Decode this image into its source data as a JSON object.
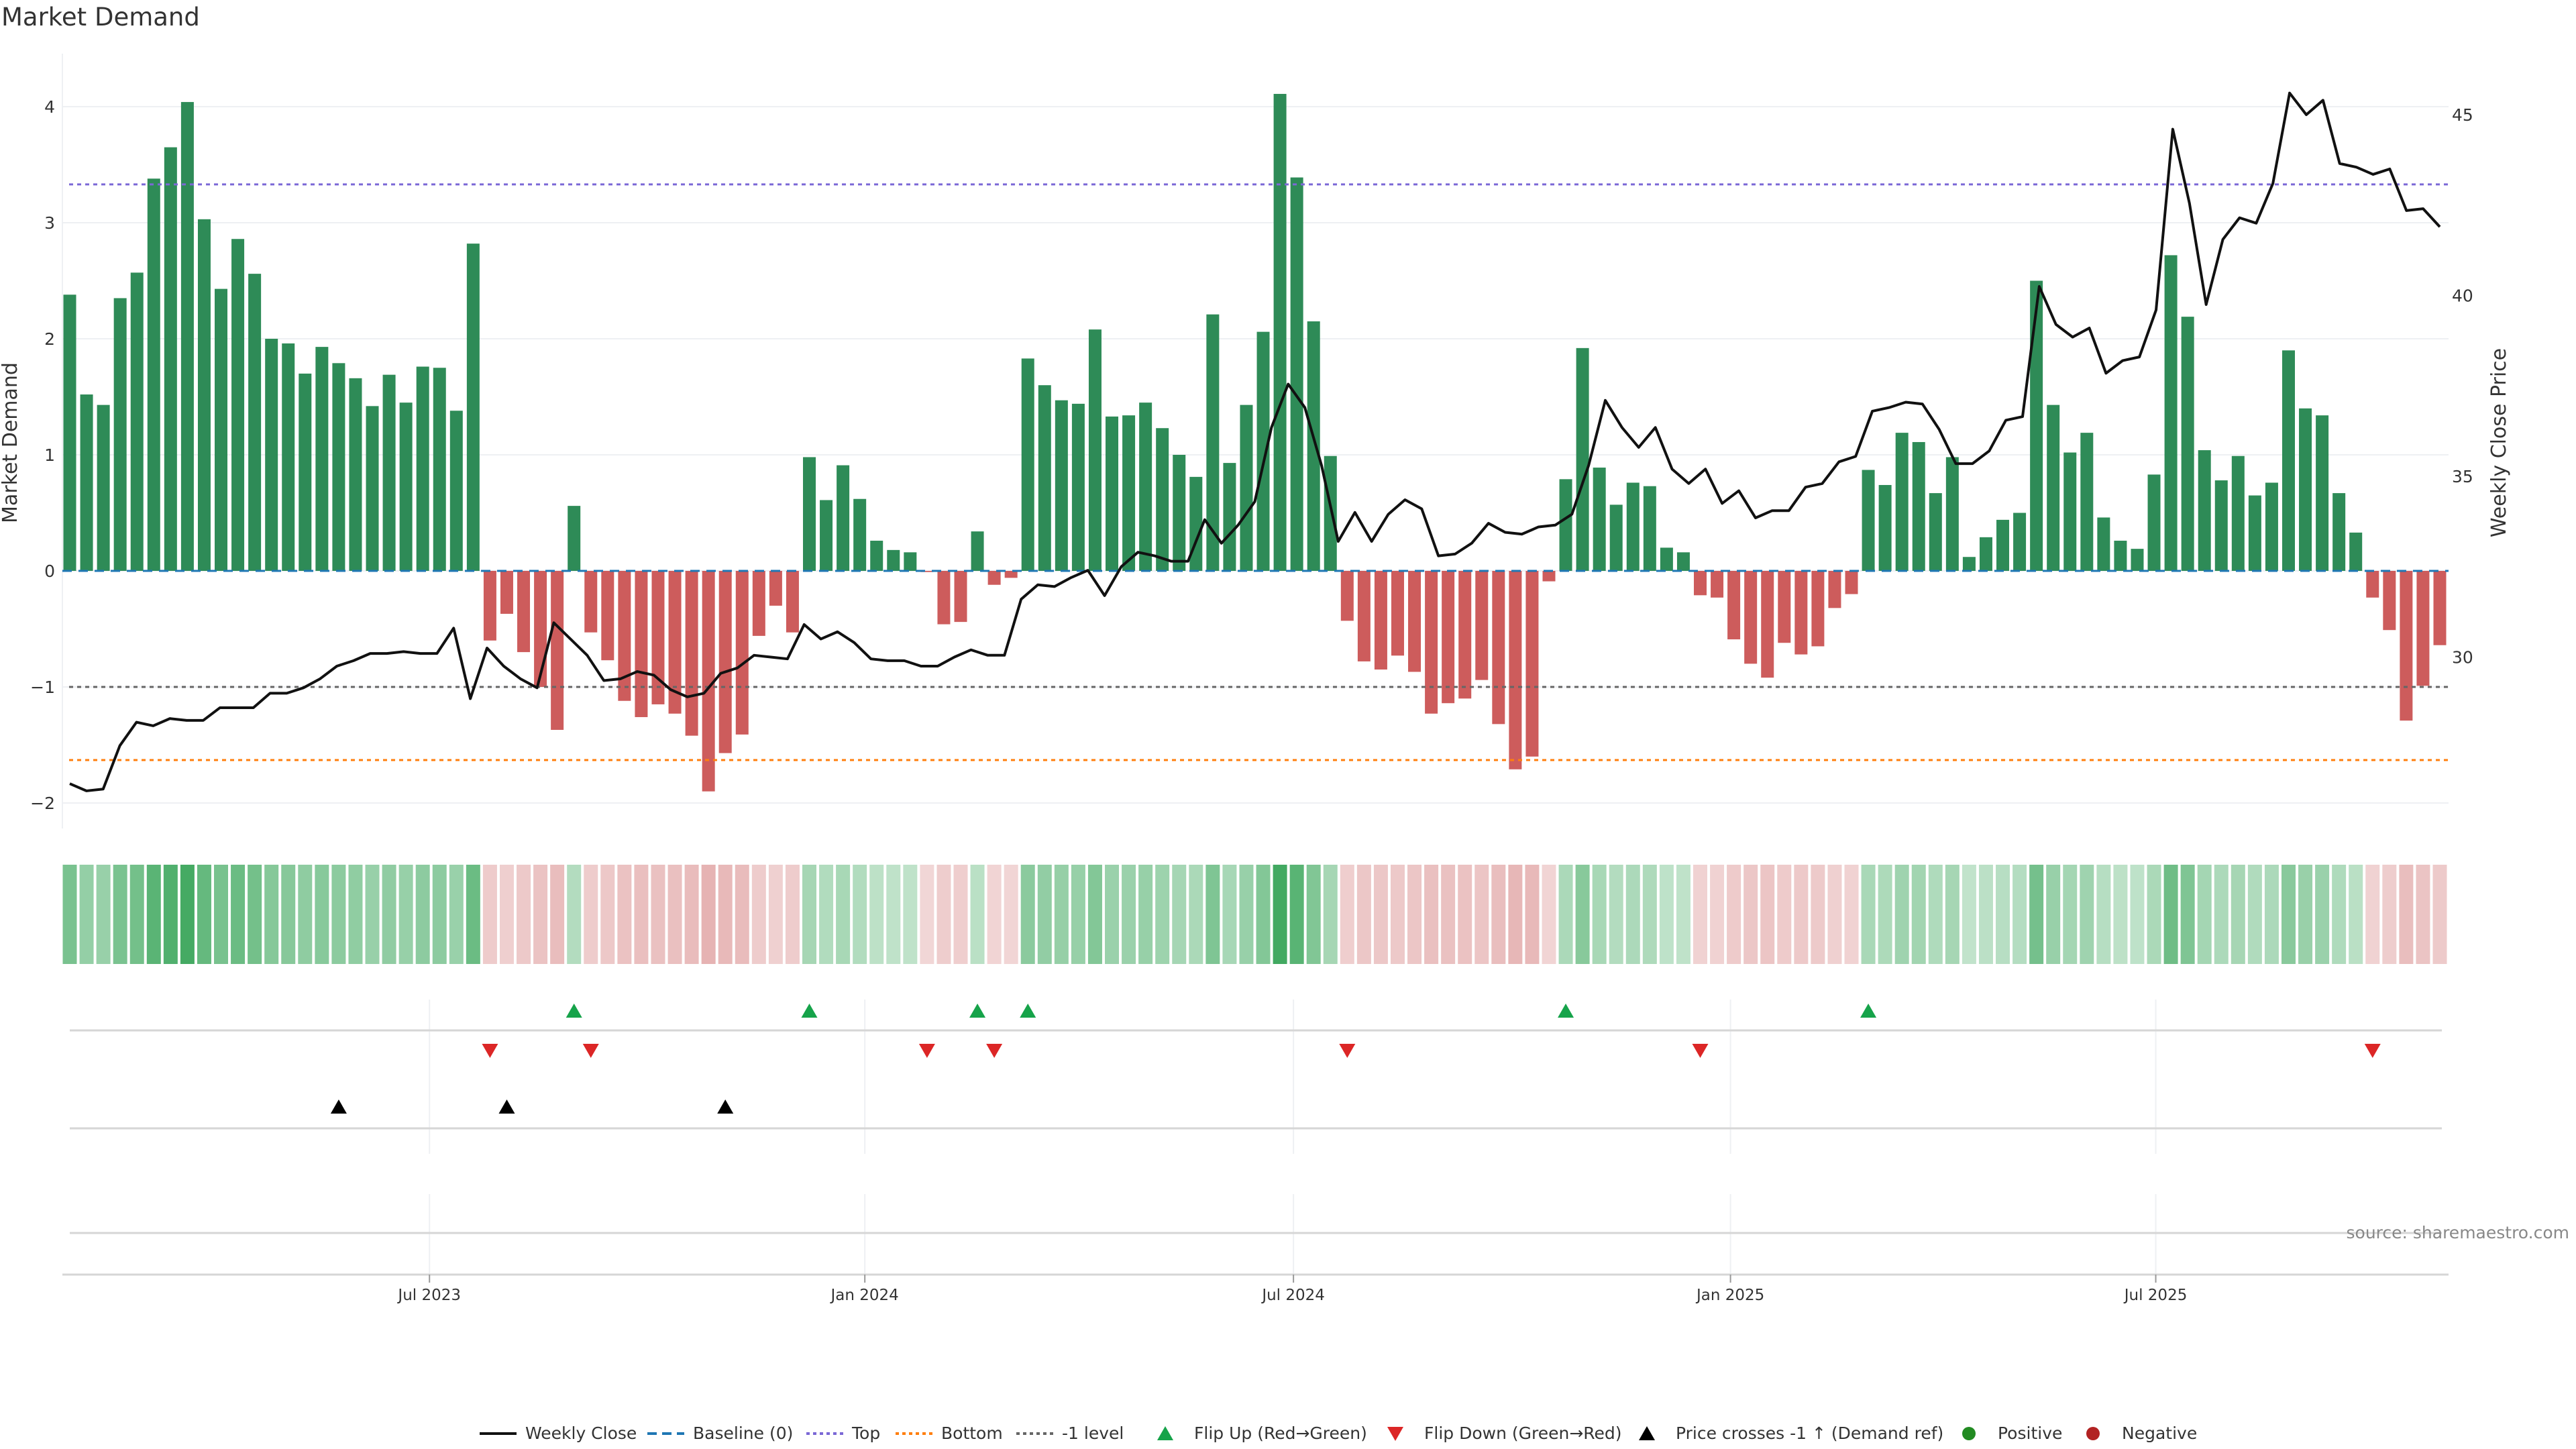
{
  "title": "Market Demand",
  "source": "source: sharemaestro.com",
  "chart_data": {
    "type": "bar",
    "title": "Market Demand",
    "ylabel": "Market Demand",
    "y2label": "Weekly Close Price",
    "ylim": [
      -2.2,
      4.4
    ],
    "y2lim": [
      25.9,
      47.0
    ],
    "yticks": [
      -2,
      -1,
      0,
      1,
      2,
      3,
      4
    ],
    "ytick_labels": [
      "−2",
      "−1",
      "0",
      "1",
      "2",
      "3",
      "4"
    ],
    "y2ticks": [
      30,
      35,
      40,
      45
    ],
    "xticks": [
      {
        "label": "Jul 2023",
        "index": 21.4
      },
      {
        "label": "Jan 2024",
        "index": 47.3
      },
      {
        "label": "Jul 2024",
        "index": 72.8
      },
      {
        "label": "Jan 2025",
        "index": 98.8
      },
      {
        "label": "Jul 2025",
        "index": 124.1
      }
    ],
    "reference_lines": {
      "baseline": 0,
      "top": 3.33,
      "bottom": -1.63,
      "minus_one": -1
    },
    "demand": [
      2.38,
      1.52,
      1.43,
      2.35,
      2.57,
      3.38,
      3.65,
      4.04,
      3.03,
      2.43,
      2.86,
      2.56,
      2.0,
      1.96,
      1.7,
      1.93,
      1.79,
      1.66,
      1.42,
      1.69,
      1.45,
      1.76,
      1.75,
      1.38,
      2.82,
      -0.6,
      -0.37,
      -0.7,
      -1.0,
      -1.37,
      0.56,
      -0.53,
      -0.77,
      -1.12,
      -1.26,
      -1.15,
      -1.23,
      -1.42,
      -1.9,
      -1.57,
      -1.41,
      -0.56,
      -0.3,
      -0.53,
      0.98,
      0.61,
      0.91,
      0.62,
      0.26,
      0.18,
      0.16,
      -0.01,
      -0.46,
      -0.44,
      0.34,
      -0.12,
      -0.06,
      1.83,
      1.6,
      1.47,
      1.44,
      2.08,
      1.33,
      1.34,
      1.45,
      1.23,
      1.0,
      0.81,
      2.21,
      0.93,
      1.43,
      2.06,
      4.11,
      3.39,
      2.15,
      0.99,
      -0.43,
      -0.78,
      -0.85,
      -0.73,
      -0.87,
      -1.23,
      -1.14,
      -1.1,
      -0.94,
      -1.32,
      -1.71,
      -1.6,
      -0.09,
      0.79,
      1.92,
      0.89,
      0.57,
      0.76,
      0.73,
      0.2,
      0.16,
      -0.21,
      -0.23,
      -0.59,
      -0.8,
      -0.92,
      -0.62,
      -0.72,
      -0.65,
      -0.32,
      -0.2,
      0.87,
      0.74,
      1.19,
      1.11,
      0.67,
      0.98,
      0.12,
      0.29,
      0.44,
      0.5,
      2.5,
      1.43,
      1.02,
      1.19,
      0.46,
      0.26,
      0.19,
      0.83,
      2.72,
      2.19,
      1.04,
      0.78,
      0.99,
      0.65,
      0.76,
      1.9,
      1.4,
      1.34,
      0.67,
      0.33,
      -0.23,
      -0.51,
      -1.29,
      -0.99,
      -0.64
    ],
    "weekly_close": [
      26.5,
      26.3,
      26.35,
      27.55,
      28.2,
      28.1,
      28.3,
      28.25,
      28.25,
      28.6,
      28.6,
      28.6,
      29.0,
      29.0,
      29.15,
      29.4,
      29.75,
      29.9,
      30.1,
      30.1,
      30.15,
      30.1,
      30.1,
      30.8,
      28.85,
      30.25,
      29.75,
      29.4,
      29.15,
      30.95,
      30.5,
      30.05,
      29.35,
      29.4,
      29.6,
      29.5,
      29.1,
      28.9,
      29.0,
      29.55,
      29.7,
      30.05,
      30.0,
      29.95,
      30.9,
      30.5,
      30.7,
      30.4,
      29.95,
      29.9,
      29.9,
      29.75,
      29.75,
      30.0,
      30.2,
      30.05,
      30.05,
      31.6,
      32.0,
      31.95,
      32.2,
      32.4,
      31.7,
      32.5,
      32.9,
      32.8,
      32.65,
      32.65,
      33.8,
      33.15,
      33.65,
      34.3,
      36.35,
      37.55,
      36.9,
      35.3,
      33.2,
      34.0,
      33.2,
      33.95,
      34.35,
      34.1,
      32.8,
      32.85,
      33.15,
      33.7,
      33.45,
      33.4,
      33.6,
      33.65,
      33.95,
      35.3,
      37.1,
      36.35,
      35.8,
      36.35,
      35.2,
      34.8,
      35.2,
      34.25,
      34.6,
      33.85,
      34.05,
      34.05,
      34.7,
      34.8,
      35.4,
      35.55,
      36.8,
      36.9,
      37.05,
      37.0,
      36.3,
      35.35,
      35.35,
      35.7,
      36.55,
      36.65,
      40.25,
      39.2,
      38.85,
      39.1,
      37.85,
      38.2,
      38.3,
      39.6,
      44.6,
      42.55,
      39.75,
      41.55,
      42.15,
      42.0,
      43.1,
      45.6,
      45.0,
      45.4,
      43.65,
      43.55,
      43.35,
      43.5,
      42.35,
      42.4,
      41.9
    ],
    "price_cross_events": [
      16,
      26,
      39
    ],
    "legend": {
      "placement": "bottom",
      "items": [
        {
          "label": "Weekly Close",
          "kind": "line",
          "color": "#111111"
        },
        {
          "label": "Baseline (0)",
          "kind": "dash",
          "color": "#1f77b4"
        },
        {
          "label": "Top",
          "kind": "dot",
          "color": "#7b68d6"
        },
        {
          "label": "Bottom",
          "kind": "dot",
          "color": "#ff7f0e"
        },
        {
          "label": "-1 level",
          "kind": "dot",
          "color": "#666666"
        },
        {
          "label": "Flip Up (Red→Green)",
          "kind": "tri-up",
          "color": "#16a34a"
        },
        {
          "label": "Flip Down (Green→Red)",
          "kind": "tri-down",
          "color": "#dc2626"
        },
        {
          "label": "Price crosses -1 ↑ (Demand ref)",
          "kind": "tri-up",
          "color": "#000000"
        },
        {
          "label": "Positive",
          "kind": "dot-circle",
          "color": "#228b22"
        },
        {
          "label": "Negative",
          "kind": "dot-circle",
          "color": "#b22222"
        }
      ]
    },
    "colors": {
      "positive_bar": "#2e8b57",
      "negative_bar": "#cd5c5c"
    }
  }
}
